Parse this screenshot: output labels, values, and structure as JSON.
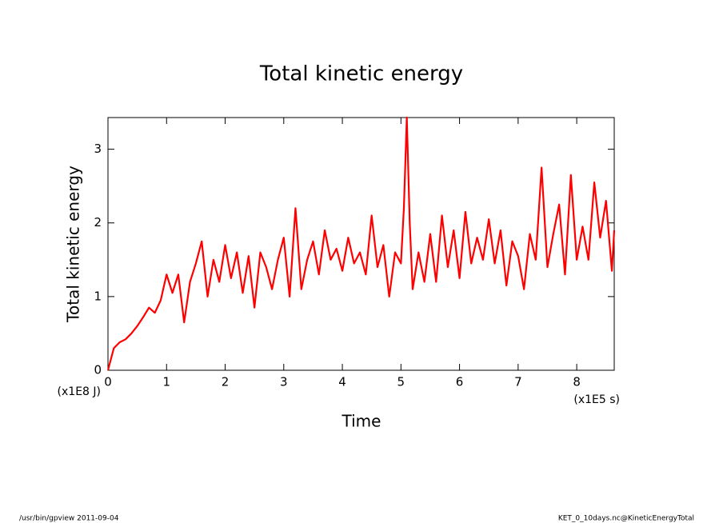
{
  "chart_data": {
    "type": "line",
    "title": "Total kinetic energy",
    "xlabel": "Time",
    "ylabel": "Total kinetic energy",
    "xunit": "(x1E5 s)",
    "yunit": "(x1E8 J)",
    "footer_left": "/usr/bin/gpview  2011-09-04",
    "footer_right": "KET_0_10days.nc@KineticEnergyTotal",
    "xlim": [
      0,
      8.64
    ],
    "ylim": [
      0,
      3.43
    ],
    "xticks": [
      0,
      1,
      2,
      3,
      4,
      5,
      6,
      7,
      8
    ],
    "yticks": [
      0,
      1,
      2,
      3
    ],
    "x": [
      0,
      0.1,
      0.2,
      0.3,
      0.4,
      0.5,
      0.6,
      0.7,
      0.8,
      0.9,
      1.0,
      1.1,
      1.2,
      1.3,
      1.4,
      1.5,
      1.6,
      1.7,
      1.8,
      1.9,
      2.0,
      2.1,
      2.2,
      2.3,
      2.4,
      2.5,
      2.6,
      2.7,
      2.8,
      2.9,
      3.0,
      3.1,
      3.2,
      3.3,
      3.4,
      3.5,
      3.6,
      3.7,
      3.8,
      3.9,
      4.0,
      4.1,
      4.2,
      4.3,
      4.4,
      4.5,
      4.6,
      4.7,
      4.8,
      4.9,
      5.0,
      5.05,
      5.1,
      5.15,
      5.2,
      5.3,
      5.4,
      5.5,
      5.6,
      5.7,
      5.8,
      5.9,
      6.0,
      6.1,
      6.2,
      6.3,
      6.4,
      6.5,
      6.6,
      6.7,
      6.8,
      6.9,
      7.0,
      7.1,
      7.2,
      7.3,
      7.4,
      7.5,
      7.6,
      7.7,
      7.8,
      7.9,
      8.0,
      8.1,
      8.2,
      8.3,
      8.4,
      8.5,
      8.6,
      8.64
    ],
    "series": [
      {
        "color": "#ff0000",
        "values": [
          0,
          0.3,
          0.38,
          0.42,
          0.5,
          0.6,
          0.72,
          0.85,
          0.78,
          0.95,
          1.3,
          1.05,
          1.3,
          0.65,
          1.2,
          1.45,
          1.75,
          1.0,
          1.5,
          1.2,
          1.7,
          1.25,
          1.6,
          1.05,
          1.55,
          0.85,
          1.6,
          1.4,
          1.1,
          1.5,
          1.8,
          1.0,
          2.2,
          1.1,
          1.5,
          1.75,
          1.3,
          1.9,
          1.5,
          1.65,
          1.35,
          1.8,
          1.45,
          1.6,
          1.3,
          2.1,
          1.4,
          1.7,
          1.0,
          1.6,
          1.45,
          2.2,
          3.43,
          2.0,
          1.1,
          1.6,
          1.2,
          1.85,
          1.2,
          2.1,
          1.4,
          1.9,
          1.25,
          2.15,
          1.45,
          1.8,
          1.5,
          2.05,
          1.45,
          1.9,
          1.15,
          1.75,
          1.55,
          1.1,
          1.85,
          1.5,
          2.75,
          1.4,
          1.85,
          2.25,
          1.3,
          2.65,
          1.5,
          1.95,
          1.5,
          2.55,
          1.8,
          2.3,
          1.35,
          1.9
        ]
      }
    ]
  }
}
